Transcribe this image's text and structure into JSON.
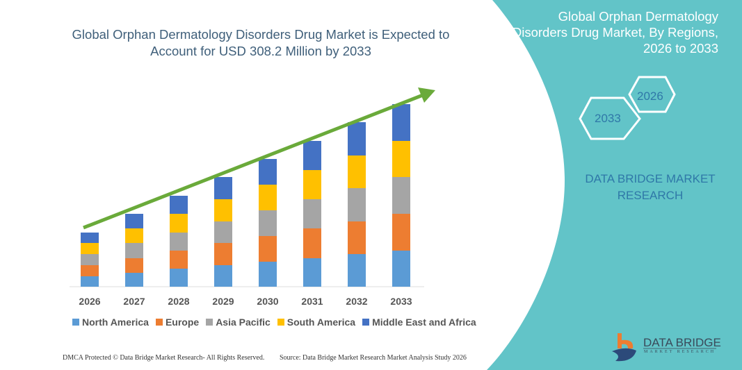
{
  "title": "Global Orphan Dermatology Disorders Drug Market is Expected to Account for USD 308.2 Million by 2033",
  "side_panel": {
    "title": "Global Orphan Dermatology Disorders Drug Market, By Regions, 2026 to 2033",
    "hex_start": "2026",
    "hex_end": "2033",
    "brand_text": "DATA BRIDGE MARKET RESEARCH",
    "logo_name": "DATA BRIDGE",
    "logo_sub": "MARKET RESEARCH",
    "color": "#62c4c8"
  },
  "footer": {
    "left": "DMCA Protected © Data Bridge Market Research- All Rights Reserved.",
    "right": "Source: Data Bridge Market Research Market Analysis Study 2026"
  },
  "chart_data": {
    "type": "bar",
    "stacked": true,
    "categories": [
      "2026",
      "2027",
      "2028",
      "2029",
      "2030",
      "2031",
      "2032",
      "2033"
    ],
    "series": [
      {
        "name": "North America",
        "color": "#5b9bd5",
        "values": [
          15,
          20,
          26,
          31,
          36,
          41,
          47,
          52
        ]
      },
      {
        "name": "Europe",
        "color": "#ed7d31",
        "values": [
          16,
          21,
          26,
          32,
          37,
          43,
          47,
          53
        ]
      },
      {
        "name": "Asia Pacific",
        "color": "#a5a5a5",
        "values": [
          16,
          22,
          26,
          31,
          37,
          42,
          48,
          53
        ]
      },
      {
        "name": "South America",
        "color": "#ffc000",
        "values": [
          16,
          21,
          27,
          32,
          37,
          42,
          47,
          52
        ]
      },
      {
        "name": "Middle East and Africa",
        "color": "#4472c4",
        "values": [
          15,
          21,
          26,
          32,
          37,
          42,
          48,
          53
        ]
      }
    ],
    "y_axis_shown": false,
    "grid": false,
    "trend_arrow_color": "#6aaa3a",
    "legend_position": "bottom"
  }
}
